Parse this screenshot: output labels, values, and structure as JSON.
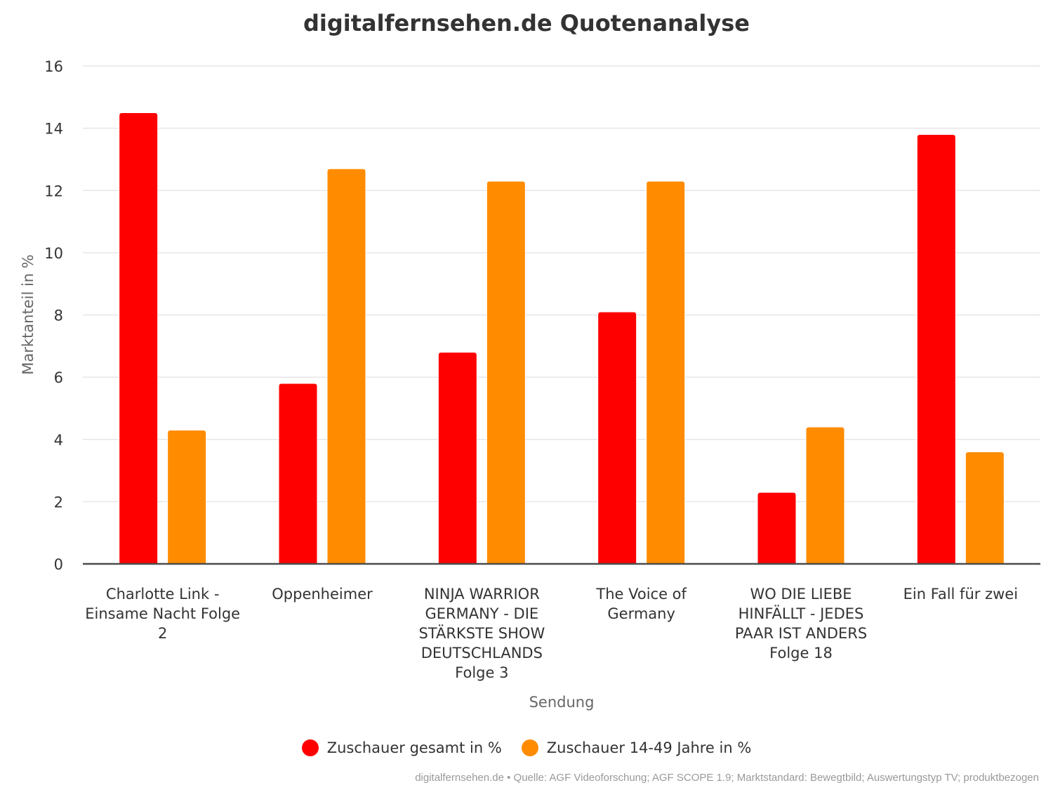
{
  "chart_data": {
    "type": "bar",
    "title": "digitalfernsehen.de Quotenanalyse",
    "xlabel": "Sendung",
    "ylabel": "Marktanteil in %",
    "ylim": [
      0,
      16
    ],
    "yticks": [
      0,
      2,
      4,
      6,
      8,
      10,
      12,
      14,
      16
    ],
    "grid": true,
    "legend_position": "bottom",
    "categories": [
      [
        "Charlotte Link -",
        "Einsame Nacht Folge",
        "2"
      ],
      [
        "Oppenheimer"
      ],
      [
        "NINJA WARRIOR",
        "GERMANY - DIE",
        "STÄRKSTE SHOW",
        "DEUTSCHLANDS",
        "Folge 3"
      ],
      [
        "The Voice of",
        "Germany"
      ],
      [
        "WO DIE LIEBE",
        "HINFÄLLT - JEDES",
        "PAAR IST ANDERS",
        "Folge 18"
      ],
      [
        "Ein Fall für zwei"
      ]
    ],
    "series": [
      {
        "name": "Zuschauer gesamt in %",
        "color": "#ff0000",
        "values": [
          14.5,
          5.8,
          6.8,
          8.1,
          2.3,
          13.8
        ]
      },
      {
        "name": "Zuschauer 14-49 Jahre in %",
        "color": "#ff8c00",
        "values": [
          4.3,
          12.7,
          12.3,
          12.3,
          4.4,
          3.6
        ]
      }
    ],
    "footer": "digitalfernsehen.de • Quelle: AGF Videoforschung; AGF SCOPE 1.9; Marktstandard: Bewegtbild; Auswertungstyp TV; produktbezogen"
  }
}
